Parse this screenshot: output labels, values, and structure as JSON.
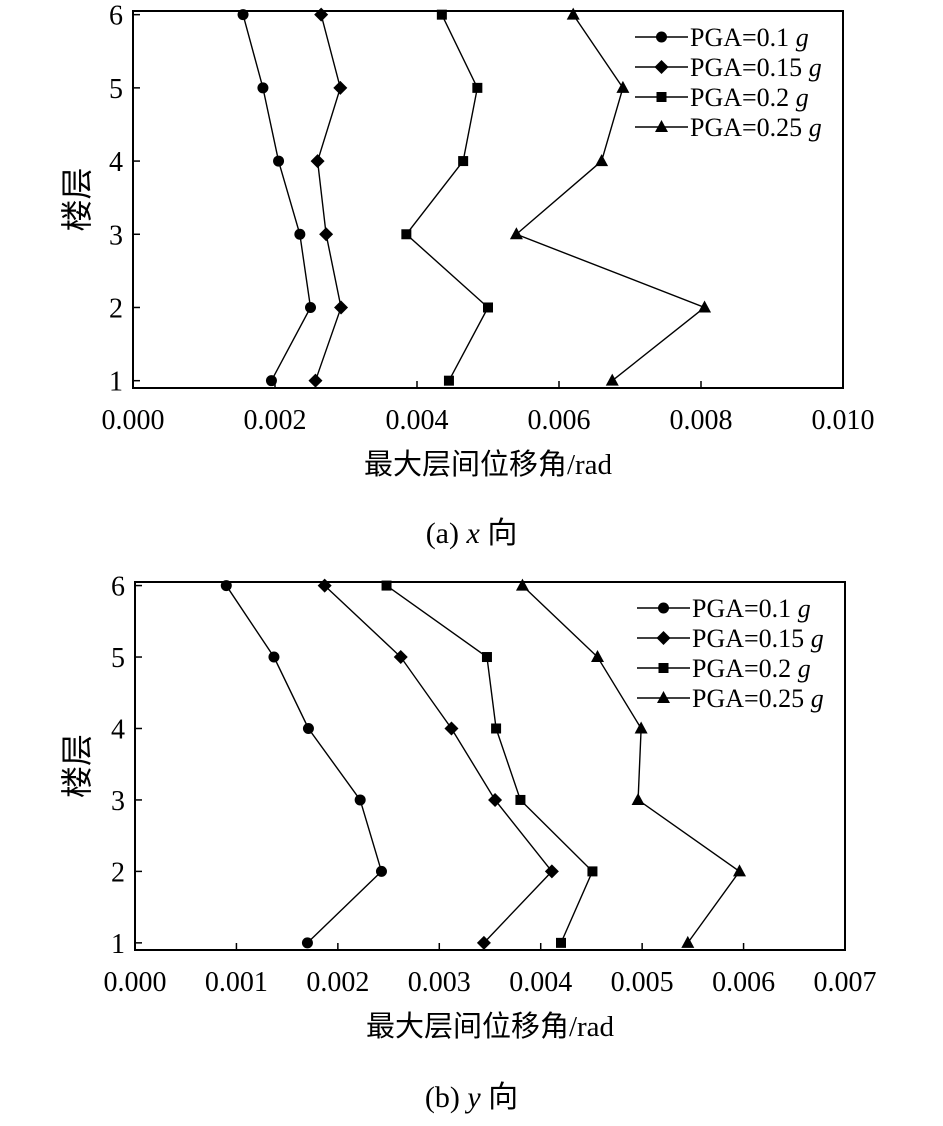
{
  "chart_data": [
    {
      "type": "line",
      "title": "",
      "xlabel": "最大层间位移角/rad",
      "ylabel": "楼层",
      "xlim": [
        0,
        0.01
      ],
      "ylim": [
        0.9,
        6.05
      ],
      "x_ticks": [
        0.0,
        0.002,
        0.004,
        0.006,
        0.008,
        0.01
      ],
      "x_tick_labels": [
        "0.000",
        "0.002",
        "0.004",
        "0.006",
        "0.008",
        "0.010"
      ],
      "y_ticks": [
        1,
        2,
        3,
        4,
        5,
        6
      ],
      "y_tick_labels": [
        "1",
        "2",
        "3",
        "4",
        "5",
        "6"
      ],
      "y": [
        1,
        2,
        3,
        4,
        5,
        6
      ],
      "grid": false,
      "legend_position": "top-right",
      "series": [
        {
          "name": "PGA=0.1 g",
          "marker": "circle",
          "x": [
            0.00195,
            0.0025,
            0.00235,
            0.00205,
            0.00183,
            0.00155
          ]
        },
        {
          "name": "PGA=0.15 g",
          "marker": "diamond",
          "x": [
            0.00257,
            0.00293,
            0.00272,
            0.0026,
            0.00292,
            0.00265
          ]
        },
        {
          "name": "PGA=0.2 g",
          "marker": "square",
          "x": [
            0.00445,
            0.005,
            0.00385,
            0.00465,
            0.00485,
            0.00435
          ]
        },
        {
          "name": "PGA=0.25 g",
          "marker": "triangle",
          "x": [
            0.00675,
            0.00805,
            0.0054,
            0.0066,
            0.0069,
            0.0062
          ]
        }
      ],
      "caption": {
        "prefix": "(a) ",
        "var": "x",
        "suffix": " 向"
      }
    },
    {
      "type": "line",
      "title": "",
      "xlabel": "最大层间位移角/rad",
      "ylabel": "楼层",
      "xlim": [
        0,
        0.007
      ],
      "ylim": [
        0.9,
        6.05
      ],
      "x_ticks": [
        0.0,
        0.001,
        0.002,
        0.003,
        0.004,
        0.005,
        0.006,
        0.007
      ],
      "x_tick_labels": [
        "0.000",
        "0.001",
        "0.002",
        "0.003",
        "0.004",
        "0.005",
        "0.006",
        "0.007"
      ],
      "y_ticks": [
        1,
        2,
        3,
        4,
        5,
        6
      ],
      "y_tick_labels": [
        "1",
        "2",
        "3",
        "4",
        "5",
        "6"
      ],
      "y": [
        1,
        2,
        3,
        4,
        5,
        6
      ],
      "grid": false,
      "legend_position": "top-right",
      "series": [
        {
          "name": "PGA=0.1 g",
          "marker": "circle",
          "x": [
            0.0017,
            0.00243,
            0.00222,
            0.00171,
            0.00137,
            0.0009
          ]
        },
        {
          "name": "PGA=0.15 g",
          "marker": "diamond",
          "x": [
            0.00344,
            0.00411,
            0.00355,
            0.00312,
            0.00262,
            0.00187
          ]
        },
        {
          "name": "PGA=0.2 g",
          "marker": "square",
          "x": [
            0.0042,
            0.00451,
            0.0038,
            0.00356,
            0.00347,
            0.00248
          ]
        },
        {
          "name": "PGA=0.25 g",
          "marker": "triangle",
          "x": [
            0.00545,
            0.00596,
            0.00496,
            0.00499,
            0.00456,
            0.00382
          ]
        }
      ],
      "caption": {
        "prefix": "(b) ",
        "var": "y",
        "suffix": " 向"
      }
    }
  ]
}
